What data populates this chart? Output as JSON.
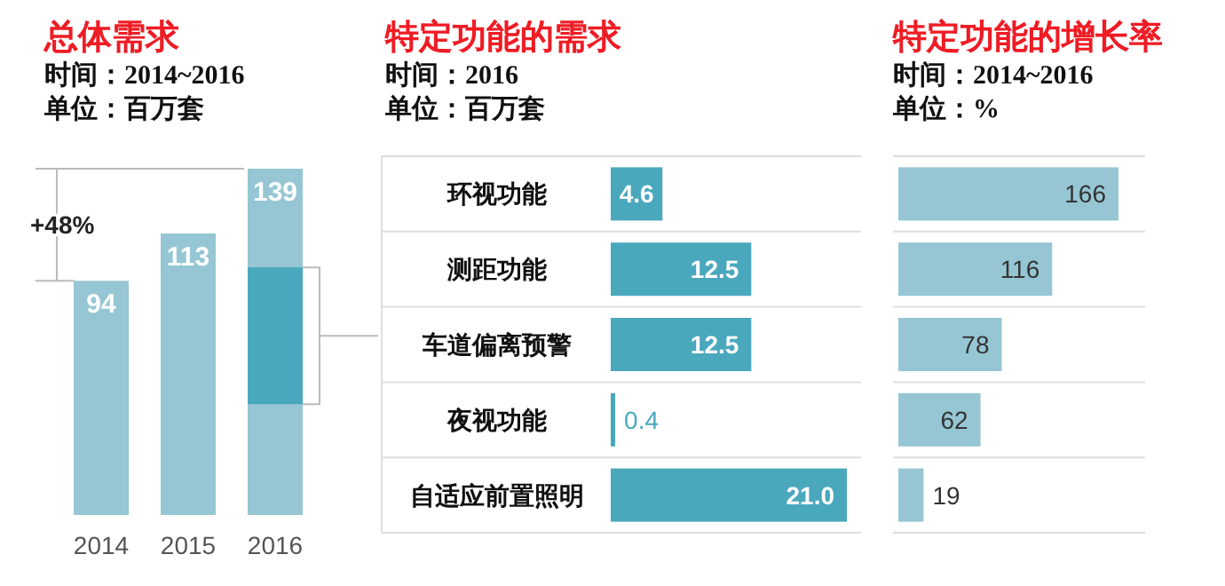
{
  "chart_data": [
    {
      "type": "bar",
      "title": "总体需求",
      "subtitle": "时间：2014~2016\n单位：百万套",
      "categories": [
        "2014",
        "2015",
        "2016"
      ],
      "values": [
        94,
        113,
        139
      ],
      "color": "#96c6d3",
      "data_labels": true,
      "annotations": [
        "+48%"
      ]
    },
    {
      "type": "bar",
      "orientation": "horizontal",
      "title": "特定功能的需求",
      "subtitle": "时间：2016\n单位：百万套",
      "categories": [
        "环视功能",
        "测距功能",
        "车道偏离预警",
        "夜视功能",
        "自适应前置照明"
      ],
      "values": [
        4.6,
        12.5,
        12.5,
        0.4,
        21.0
      ],
      "color": "#4aa8bd",
      "value_labels": [
        "4.6",
        "12.5",
        "12.5",
        "0.4",
        "21.0"
      ]
    },
    {
      "type": "bar",
      "orientation": "horizontal",
      "title": "特定功能的增长率",
      "subtitle": "时间：2014~2016\n单位：%",
      "categories": [
        null,
        null,
        null,
        null,
        null
      ],
      "values": [
        166,
        116,
        78,
        62,
        19
      ],
      "color": "#96c6d3",
      "data_labels": true
    }
  ]
}
